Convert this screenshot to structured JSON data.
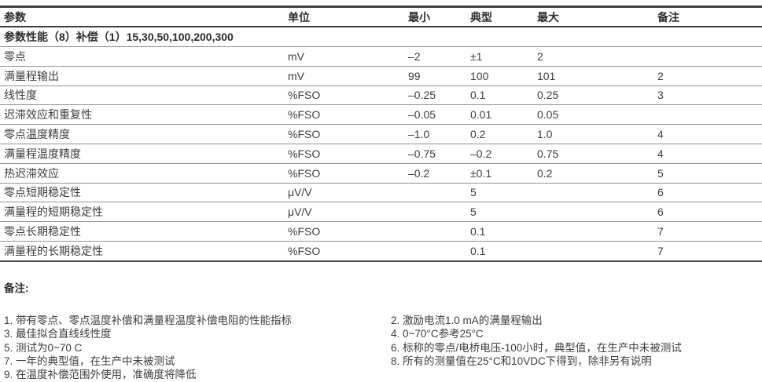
{
  "table": {
    "columns": [
      {
        "label": "参数"
      },
      {
        "label": "单位"
      },
      {
        "label": "最小"
      },
      {
        "label": "典型"
      },
      {
        "label": "最大"
      },
      {
        "label": "备注"
      }
    ],
    "section_header": "参数性能（8）补偿（1）15,30,50,100,200,300",
    "rows": [
      {
        "param": "零点",
        "unit": "mV",
        "min": "–2",
        "typ": "±1",
        "max": "2",
        "note": ""
      },
      {
        "param": "满量程输出",
        "unit": "mV",
        "min": "99",
        "typ": "100",
        "max": "101",
        "note": "2"
      },
      {
        "param": "线性度",
        "unit": "%FSO",
        "min": "–0.25",
        "typ": "0.1",
        "max": "0.25",
        "note": "3"
      },
      {
        "param": "迟滞效应和重复性",
        "unit": "%FSO",
        "min": "–0.05",
        "typ": "0.01",
        "max": "0.05",
        "note": ""
      },
      {
        "param": "零点温度精度",
        "unit": "%FSO",
        "min": "–1.0",
        "typ": "0.2",
        "max": "1.0",
        "note": "4"
      },
      {
        "param": "满量程温度精度",
        "unit": "%FSO",
        "min": "–0.75",
        "typ": "–0.2",
        "max": "0.75",
        "note": "4"
      },
      {
        "param": "热迟滞效应",
        "unit": "%FSO",
        "min": "–0.2",
        "typ": "±0.1",
        "max": "0.2",
        "note": "5"
      },
      {
        "param": "零点短期稳定性",
        "unit": "μV/V",
        "min": "",
        "typ": "5",
        "max": "",
        "note": "6"
      },
      {
        "param": "满量程的短期稳定性",
        "unit": "μV/V",
        "min": "",
        "typ": "5",
        "max": "",
        "note": "6"
      },
      {
        "param": "零点长期稳定性",
        "unit": "%FSO",
        "min": "",
        "typ": "0.1",
        "max": "",
        "note": "7"
      },
      {
        "param": "满量程的长期稳定性",
        "unit": "%FSO",
        "min": "",
        "typ": "0.1",
        "max": "",
        "note": "7"
      }
    ]
  },
  "notes": {
    "title": "备注:",
    "left": [
      "1. 带有零点、零点温度补偿和满量程温度补偿电阻的性能指标",
      "3. 最佳拟合直线线性度",
      "5. 测试为0~70 C",
      "7. 一年的典型值，在生产中未被测试",
      "9. 在温度补偿范围外使用，准确度将降低"
    ],
    "right": [
      "2. 激励电流1.0 mA的满量程输出",
      "4. 0~70°C参考25°C",
      "6. 标称的零点/电桥电压-100小时，典型值，在生产中未被测试",
      "8. 所有的测量值在25°C和10VDC下得到，除非另有说明"
    ]
  }
}
